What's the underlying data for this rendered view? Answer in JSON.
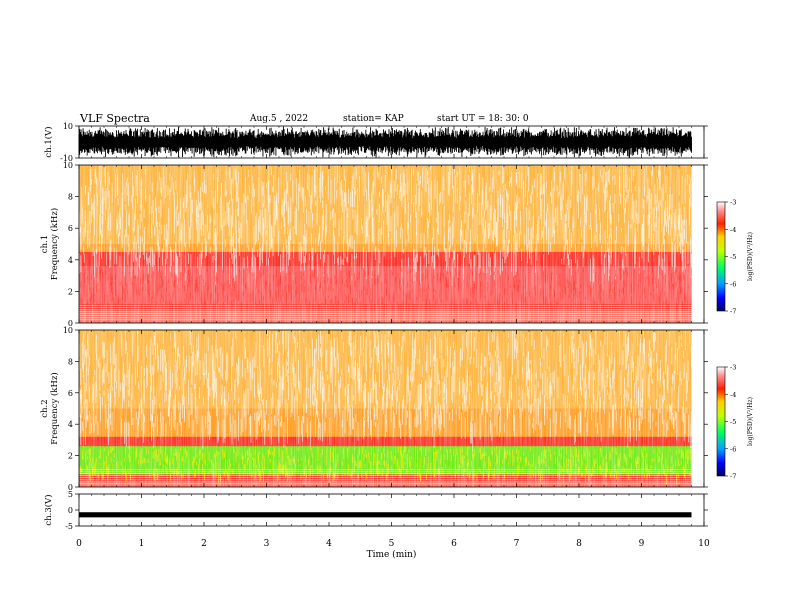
{
  "header": {
    "title": "VLF Spectra",
    "date": "Aug.5 , 2022",
    "station": "station= KAP",
    "start": "start UT = 18: 30: 0"
  },
  "colors": {
    "spectrogram_low": "#ffffff",
    "spectrogram_mid": "#ff2a20",
    "spectrogram_high": "#ffe000",
    "spectrogram_peak": "#30ff00",
    "waveform": "#000000"
  },
  "chart_data": [
    {
      "type": "line",
      "panel": "ch1-waveform",
      "ylabel": "ch.1(V)",
      "ylim": [
        -10,
        10
      ],
      "yticks": [
        "10",
        "-10"
      ],
      "description_of_data": "dense broadband waveform spanning roughly -10 to 10 V over the full record",
      "x": [
        0,
        9.8
      ],
      "xlim": [
        0,
        10
      ]
    },
    {
      "type": "heatmap",
      "panel": "ch1-spectrogram",
      "ylabel": "ch.1 Frequency (kHz)",
      "ylim": [
        0,
        10
      ],
      "yticks": [
        "0",
        "2",
        "4",
        "6",
        "8",
        "10"
      ],
      "xlim": [
        0,
        10
      ],
      "data_extent_min": 9.8,
      "colorbar": {
        "label": "log(PSD)(V²/Hz)",
        "range": [
          -7,
          -3
        ],
        "ticks": [
          "-3",
          "-4",
          "-5",
          "-6",
          "-7"
        ]
      },
      "bands_kHz": [
        {
          "from": 0.8,
          "to": 4.5,
          "level": -4.2
        },
        {
          "from": 1.2,
          "to": 3.6,
          "level": -3.8
        },
        {
          "from": 4.5,
          "to": 10,
          "level": -4.8
        }
      ]
    },
    {
      "type": "heatmap",
      "panel": "ch2-spectrogram",
      "ylabel": "ch.2 Frequency (kHz)",
      "ylim": [
        0,
        10
      ],
      "yticks": [
        "0",
        "2",
        "4",
        "6",
        "8",
        "10"
      ],
      "xlim": [
        0,
        10
      ],
      "colorbar": {
        "label": "log(PSD)(V²/Hz)",
        "range": [
          -7,
          -3
        ],
        "ticks": [
          "-3",
          "-4",
          "-5",
          "-6",
          "-7"
        ]
      },
      "bands_kHz": [
        {
          "from": 0.3,
          "to": 3.2,
          "level": -4.4
        },
        {
          "from": 0.8,
          "to": 2.6,
          "level": -5.4
        },
        {
          "from": 3.2,
          "to": 10,
          "level": -4.7
        }
      ]
    },
    {
      "type": "line",
      "panel": "ch3-waveform",
      "ylabel": "ch.3(V)",
      "ylim": [
        -5,
        5
      ],
      "yticks": [
        "5",
        "0",
        "-5"
      ],
      "xlabel": "Time (min)",
      "xlim": [
        0,
        10
      ],
      "xticks": [
        "0",
        "1",
        "2",
        "3",
        "4",
        "5",
        "6",
        "7",
        "8",
        "9",
        "10"
      ],
      "approx_level_V": -1.5
    }
  ]
}
